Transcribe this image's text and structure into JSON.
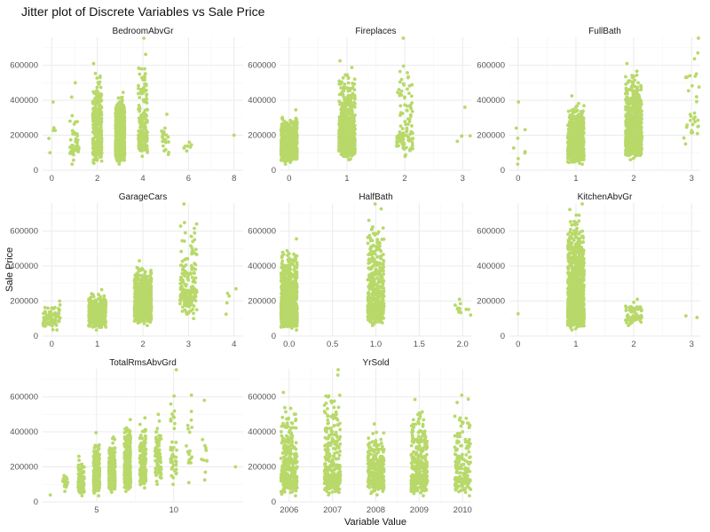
{
  "figure": {
    "title": "Jitter plot of Discrete Variables vs Sale Price",
    "xlabel": "Variable Value",
    "ylabel": "Sale Price",
    "point_color": "#b8d96a",
    "grid_color": "#ebebeb",
    "grid_minor_color": "#f4f4f4"
  },
  "chart_data": [
    {
      "type": "scatter",
      "jitter": true,
      "title": "BedroomAbvGr",
      "xlim": [
        -0.4,
        8.4
      ],
      "ylim": [
        0,
        760000
      ],
      "xticks": [
        0,
        2,
        4,
        6,
        8
      ],
      "yticks": [
        0,
        200000,
        400000,
        600000
      ],
      "groups": [
        {
          "x": 0,
          "n": 6,
          "min": 100000,
          "max": 390000,
          "median": 200000
        },
        {
          "x": 1,
          "n": 50,
          "min": 35000,
          "max": 500000,
          "median": 150000
        },
        {
          "x": 2,
          "n": 358,
          "min": 40000,
          "max": 610000,
          "median": 175000
        },
        {
          "x": 3,
          "n": 804,
          "min": 35000,
          "max": 445000,
          "median": 170000
        },
        {
          "x": 4,
          "n": 213,
          "min": 80000,
          "max": 755000,
          "median": 230000
        },
        {
          "x": 5,
          "n": 21,
          "min": 90000,
          "max": 320000,
          "median": 200000
        },
        {
          "x": 6,
          "n": 7,
          "min": 110000,
          "max": 160000,
          "median": 140000
        },
        {
          "x": 8,
          "n": 1,
          "min": 200000,
          "max": 200000,
          "median": 200000
        }
      ]
    },
    {
      "type": "scatter",
      "jitter": true,
      "title": "Fireplaces",
      "xlim": [
        -0.15,
        3.15
      ],
      "ylim": [
        0,
        760000
      ],
      "xticks": [
        0,
        1,
        2,
        3
      ],
      "yticks": [
        0,
        200000,
        400000,
        600000
      ],
      "groups": [
        {
          "x": 0,
          "n": 690,
          "min": 35000,
          "max": 345000,
          "median": 135000
        },
        {
          "x": 1,
          "n": 650,
          "min": 60000,
          "max": 625000,
          "median": 200000
        },
        {
          "x": 2,
          "n": 115,
          "min": 80000,
          "max": 755000,
          "median": 230000
        },
        {
          "x": 3,
          "n": 5,
          "min": 165000,
          "max": 360000,
          "median": 200000
        }
      ]
    },
    {
      "type": "scatter",
      "jitter": true,
      "title": "FullBath",
      "xlim": [
        -0.15,
        3.15
      ],
      "ylim": [
        0,
        760000
      ],
      "xticks": [
        0,
        1,
        2,
        3
      ],
      "yticks": [
        0,
        200000,
        400000,
        600000
      ],
      "groups": [
        {
          "x": 0,
          "n": 9,
          "min": 35000,
          "max": 390000,
          "median": 160000
        },
        {
          "x": 1,
          "n": 650,
          "min": 35000,
          "max": 425000,
          "median": 135000
        },
        {
          "x": 2,
          "n": 768,
          "min": 60000,
          "max": 610000,
          "median": 210000
        },
        {
          "x": 3,
          "n": 33,
          "min": 150000,
          "max": 755000,
          "median": 310000
        }
      ]
    },
    {
      "type": "scatter",
      "jitter": true,
      "title": "GarageCars",
      "xlim": [
        -0.2,
        4.2
      ],
      "ylim": [
        0,
        760000
      ],
      "xticks": [
        0,
        1,
        2,
        3,
        4
      ],
      "yticks": [
        0,
        200000,
        400000,
        600000
      ],
      "groups": [
        {
          "x": 0,
          "n": 81,
          "min": 35000,
          "max": 200000,
          "median": 100000
        },
        {
          "x": 1,
          "n": 369,
          "min": 35000,
          "max": 265000,
          "median": 130000
        },
        {
          "x": 2,
          "n": 824,
          "min": 60000,
          "max": 430000,
          "median": 180000
        },
        {
          "x": 3,
          "n": 181,
          "min": 100000,
          "max": 755000,
          "median": 290000
        },
        {
          "x": 4,
          "n": 5,
          "min": 125000,
          "max": 270000,
          "median": 200000
        }
      ]
    },
    {
      "type": "scatter",
      "jitter": true,
      "title": "HalfBath",
      "xlim": [
        -0.1,
        2.1
      ],
      "ylim": [
        0,
        760000
      ],
      "xticks": [
        0.0,
        0.5,
        1.0,
        1.5,
        2.0
      ],
      "xticklabels": [
        "0.0",
        "0.5",
        "1.0",
        "1.5",
        "2.0"
      ],
      "yticks": [
        0,
        200000,
        400000,
        600000
      ],
      "groups": [
        {
          "x": 0,
          "n": 913,
          "min": 35000,
          "max": 555000,
          "median": 150000
        },
        {
          "x": 1,
          "n": 535,
          "min": 60000,
          "max": 755000,
          "median": 200000
        },
        {
          "x": 2,
          "n": 12,
          "min": 120000,
          "max": 210000,
          "median": 165000
        }
      ]
    },
    {
      "type": "scatter",
      "jitter": true,
      "title": "KitchenAbvGr",
      "xlim": [
        -0.15,
        3.15
      ],
      "ylim": [
        0,
        760000
      ],
      "xticks": [
        0,
        1,
        2,
        3
      ],
      "yticks": [
        0,
        200000,
        400000,
        600000
      ],
      "groups": [
        {
          "x": 0,
          "n": 1,
          "min": 127500,
          "max": 127500,
          "median": 127500
        },
        {
          "x": 1,
          "n": 1392,
          "min": 35000,
          "max": 755000,
          "median": 170000
        },
        {
          "x": 2,
          "n": 65,
          "min": 60000,
          "max": 210000,
          "median": 125000
        },
        {
          "x": 3,
          "n": 2,
          "min": 106000,
          "max": 115000,
          "median": 110000
        }
      ]
    },
    {
      "type": "scatter",
      "jitter": true,
      "title": "TotalRmsAbvGrd",
      "xlim": [
        1.5,
        14.5
      ],
      "ylim": [
        0,
        760000
      ],
      "xticks": [
        5,
        10
      ],
      "yticks": [
        0,
        200000,
        400000,
        600000
      ],
      "groups": [
        {
          "x": 2,
          "n": 1,
          "min": 39300,
          "max": 39300,
          "median": 39300
        },
        {
          "x": 3,
          "n": 17,
          "min": 60000,
          "max": 150000,
          "median": 110000
        },
        {
          "x": 4,
          "n": 97,
          "min": 35000,
          "max": 260000,
          "median": 115000
        },
        {
          "x": 5,
          "n": 275,
          "min": 35000,
          "max": 395000,
          "median": 130000
        },
        {
          "x": 6,
          "n": 402,
          "min": 55000,
          "max": 370000,
          "median": 150000
        },
        {
          "x": 7,
          "n": 329,
          "min": 60000,
          "max": 470000,
          "median": 185000
        },
        {
          "x": 8,
          "n": 187,
          "min": 80000,
          "max": 480000,
          "median": 210000
        },
        {
          "x": 9,
          "n": 75,
          "min": 100000,
          "max": 500000,
          "median": 240000
        },
        {
          "x": 10,
          "n": 47,
          "min": 100000,
          "max": 755000,
          "median": 270000
        },
        {
          "x": 11,
          "n": 18,
          "min": 110000,
          "max": 610000,
          "median": 300000
        },
        {
          "x": 12,
          "n": 11,
          "min": 125000,
          "max": 580000,
          "median": 270000
        },
        {
          "x": 14,
          "n": 1,
          "min": 200000,
          "max": 200000,
          "median": 200000
        }
      ]
    },
    {
      "type": "scatter",
      "jitter": true,
      "title": "YrSold",
      "xlim": [
        2005.8,
        2010.2
      ],
      "ylim": [
        0,
        760000
      ],
      "xticks": [
        2006,
        2007,
        2008,
        2009,
        2010
      ],
      "yticks": [
        0,
        200000,
        400000,
        600000
      ],
      "groups": [
        {
          "x": 2006,
          "n": 314,
          "min": 35000,
          "max": 625000,
          "median": 165000
        },
        {
          "x": 2007,
          "n": 329,
          "min": 40000,
          "max": 755000,
          "median": 167000
        },
        {
          "x": 2008,
          "n": 304,
          "min": 40000,
          "max": 445000,
          "median": 165000
        },
        {
          "x": 2009,
          "n": 338,
          "min": 35000,
          "max": 585000,
          "median": 162000
        },
        {
          "x": 2010,
          "n": 175,
          "min": 35000,
          "max": 610000,
          "median": 155000
        }
      ]
    }
  ]
}
